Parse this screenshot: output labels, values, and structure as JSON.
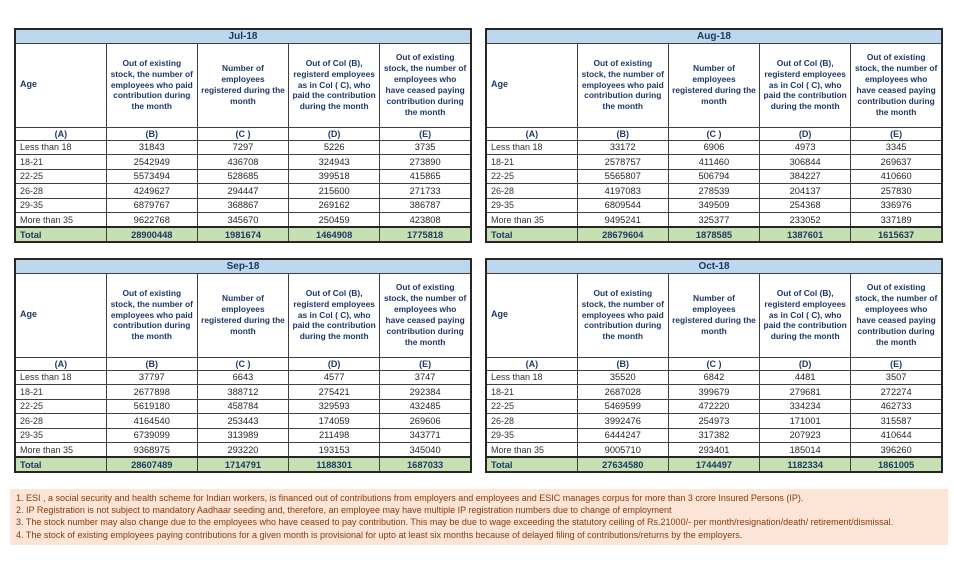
{
  "columns": {
    "age": "Age",
    "b": "Out of existing stock, the number of employees who paid contribution during the month",
    "c": "Number of employees registered during the month",
    "d": "Out of Col (B), registerd employees as in Col ( C), who paid the contribution during the month",
    "e": "Out of existing stock, the number of employees who have ceased paying contribution during the month",
    "letters": [
      "(A)",
      "(B)",
      "(C )",
      "(D)",
      "(E)"
    ]
  },
  "tables": [
    {
      "month": "Jul-18",
      "rows": [
        [
          "Less than 18",
          "31843",
          "7297",
          "5226",
          "3735"
        ],
        [
          "18-21",
          "2542949",
          "436708",
          "324943",
          "273890"
        ],
        [
          "22-25",
          "5573494",
          "528685",
          "399518",
          "415865"
        ],
        [
          "26-28",
          "4249627",
          "294447",
          "215600",
          "271733"
        ],
        [
          "29-35",
          "6879767",
          "368867",
          "269162",
          "386787"
        ],
        [
          "More than 35",
          "9622768",
          "345670",
          "250459",
          "423808"
        ]
      ],
      "total": [
        "Total",
        "28900448",
        "1981674",
        "1464908",
        "1775818"
      ]
    },
    {
      "month": "Aug-18",
      "rows": [
        [
          "Less than 18",
          "33172",
          "6906",
          "4973",
          "3345"
        ],
        [
          "18-21",
          "2578757",
          "411460",
          "306844",
          "269637"
        ],
        [
          "22-25",
          "5565807",
          "506794",
          "384227",
          "410660"
        ],
        [
          "26-28",
          "4197083",
          "278539",
          "204137",
          "257830"
        ],
        [
          "29-35",
          "6809544",
          "349509",
          "254368",
          "336976"
        ],
        [
          "More than 35",
          "9495241",
          "325377",
          "233052",
          "337189"
        ]
      ],
      "total": [
        "Total",
        "28679604",
        "1878585",
        "1387601",
        "1615637"
      ]
    },
    {
      "month": "Sep-18",
      "rows": [
        [
          "Less than 18",
          "37797",
          "6643",
          "4577",
          "3747"
        ],
        [
          "18-21",
          "2677898",
          "388712",
          "275421",
          "292384"
        ],
        [
          "22-25",
          "5619180",
          "458784",
          "329593",
          "432485"
        ],
        [
          "26-28",
          "4164540",
          "253443",
          "174059",
          "269606"
        ],
        [
          "29-35",
          "6739099",
          "313989",
          "211498",
          "343771"
        ],
        [
          "More than 35",
          "9368975",
          "293220",
          "193153",
          "345040"
        ]
      ],
      "total": [
        "Total",
        "28607489",
        "1714791",
        "1188301",
        "1687033"
      ]
    },
    {
      "month": "Oct-18",
      "rows": [
        [
          "Less than 18",
          "35520",
          "6842",
          "4481",
          "3507"
        ],
        [
          "18-21",
          "2687028",
          "399679",
          "279681",
          "272274"
        ],
        [
          "22-25",
          "5469599",
          "472220",
          "334234",
          "462733"
        ],
        [
          "26-28",
          "3992476",
          "254973",
          "171001",
          "315587"
        ],
        [
          "29-35",
          "6444247",
          "317382",
          "207923",
          "410644"
        ],
        [
          "More than 35",
          "9005710",
          "293401",
          "185014",
          "396260"
        ]
      ],
      "total": [
        "Total",
        "27634580",
        "1744497",
        "1182334",
        "1861005"
      ]
    }
  ],
  "footnotes": [
    "1. ESI , a social security and health scheme for Indian workers, is financed out of contributions from employers and employees and ESIC manages corpus for more than 3 crore Insured Persons (IP).",
    "2. IP Registration is not subject to mandatory Aadhaar seeding and, therefore, an employee may have multiple IP registration numbers due to change of employment",
    "3. The stock number may also change due to the employees who have ceased to pay contribution. This may  be due to wage exceeding the statutory ceiling of  Rs.21000/- per month/resignation/death/ retirement/dismissal.",
    "4. The stock of existing employees paying contributions for a given month is provisional for upto at least six months because of delayed filing of contributions/returns by the employers."
  ],
  "colors": {
    "month_header_bg": "#BDD7EE",
    "header_text": "#1F3864",
    "total_row_bg": "#C6E0B4",
    "footnote_bg": "#FCE4D6",
    "footnote_text": "#833C0B"
  }
}
